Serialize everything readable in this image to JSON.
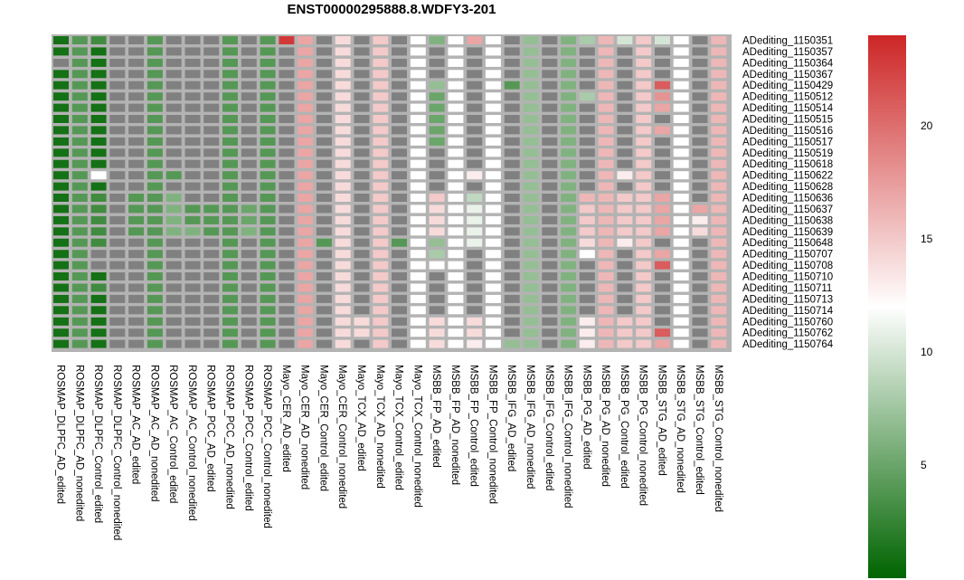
{
  "chart_data": {
    "type": "heatmap",
    "title": "ENST00000295888.8.WDFY3-201",
    "columns": [
      "ROSMAP_DLPFC_AD_edited",
      "ROSMAP_DLPFC_AD_nonedited",
      "ROSMAP_DLPFC_Control_edited",
      "ROSMAP_DLPFC_Control_nonedited",
      "ROSMAP_AC_AD_edited",
      "ROSMAP_AC_AD_nonedited",
      "ROSMAP_AC_Control_edited",
      "ROSMAP_AC_Control_nonedited",
      "ROSMAP_PCC_AD_edited",
      "ROSMAP_PCC_AD_nonedited",
      "ROSMAP_PCC_Control_edited",
      "ROSMAP_PCC_Control_nonedited",
      "Mayo_CER_AD_edited",
      "Mayo_CER_AD_nonedited",
      "Mayo_CER_Control_edited",
      "Mayo_CER_Control_nonedited",
      "Mayo_TCX_AD_edited",
      "Mayo_TCX_AD_nonedited",
      "Mayo_TCX_Control_edited",
      "Mayo_TCX_Control_nonedited",
      "MSBB_FP_AD_edited",
      "MSBB_FP_AD_nonedited",
      "MSBB_FP_Control_edited",
      "MSBB_FP_Control_nonedited",
      "MSBB_IFG_AD_edited",
      "MSBB_IFG_AD_nonedited",
      "MSBB_IFG_Control_edited",
      "MSBB_IFG_Control_nonedited",
      "MSBB_PG_AD_edited",
      "MSBB_PG_AD_nonedited",
      "MSBB_PG_Control_edited",
      "MSBB_PG_Control_nonedited",
      "MSBB_STG_AD_edited",
      "MSBB_STG_AD_nonedited",
      "MSBB_STG_Control_edited",
      "MSBB_STG_Control_nonedited"
    ],
    "rows": [
      "ADediting_1150351",
      "ADediting_1150357",
      "ADediting_1150364",
      "ADediting_1150367",
      "ADediting_1150429",
      "ADediting_1150512",
      "ADediting_1150514",
      "ADediting_1150515",
      "ADediting_1150516",
      "ADediting_1150517",
      "ADediting_1150519",
      "ADediting_1150618",
      "ADediting_1150622",
      "ADediting_1150628",
      "ADediting_1150636",
      "ADediting_1150637",
      "ADediting_1150638",
      "ADediting_1150639",
      "ADediting_1150648",
      "ADediting_1150707",
      "ADediting_1150708",
      "ADediting_1150710",
      "ADediting_1150711",
      "ADediting_1150713",
      "ADediting_1150714",
      "ADediting_1150760",
      "ADediting_1150762",
      "ADediting_1150764"
    ],
    "values": [
      [
        1,
        4,
        3,
        null,
        null,
        4,
        null,
        null,
        null,
        4,
        null,
        4,
        23,
        17,
        null,
        14,
        null,
        15,
        null,
        12,
        6,
        12,
        17,
        12,
        null,
        7,
        null,
        6,
        8,
        16,
        10,
        15,
        10,
        12,
        null,
        16
      ],
      [
        1,
        4,
        1,
        null,
        null,
        4,
        null,
        null,
        null,
        4,
        null,
        4,
        null,
        17,
        null,
        14,
        null,
        15,
        null,
        12,
        null,
        12,
        null,
        12,
        null,
        7,
        null,
        6,
        null,
        16,
        null,
        15,
        null,
        12,
        null,
        16
      ],
      [
        null,
        4,
        1,
        null,
        null,
        4,
        null,
        null,
        null,
        4,
        null,
        4,
        null,
        17,
        null,
        14,
        null,
        15,
        null,
        12,
        null,
        12,
        null,
        12,
        null,
        7,
        null,
        6,
        null,
        16,
        null,
        15,
        null,
        12,
        null,
        16
      ],
      [
        1,
        4,
        1,
        null,
        null,
        4,
        null,
        null,
        null,
        4,
        null,
        4,
        null,
        17,
        null,
        14,
        null,
        15,
        null,
        12,
        null,
        12,
        null,
        12,
        null,
        7,
        null,
        6,
        null,
        16,
        null,
        15,
        null,
        12,
        null,
        16
      ],
      [
        1,
        4,
        1,
        null,
        null,
        4,
        null,
        null,
        null,
        4,
        null,
        4,
        null,
        17,
        null,
        14,
        null,
        15,
        null,
        12,
        7,
        12,
        null,
        12,
        4,
        7,
        null,
        6,
        null,
        16,
        null,
        15,
        21,
        12,
        null,
        16
      ],
      [
        1,
        4,
        1,
        null,
        null,
        4,
        null,
        null,
        null,
        4,
        null,
        4,
        null,
        17,
        null,
        14,
        null,
        15,
        null,
        12,
        5,
        12,
        null,
        12,
        null,
        7,
        null,
        6,
        8,
        16,
        null,
        15,
        18,
        12,
        null,
        16
      ],
      [
        1,
        4,
        1,
        null,
        null,
        4,
        null,
        null,
        null,
        4,
        null,
        4,
        null,
        17,
        null,
        14,
        null,
        15,
        null,
        12,
        5,
        12,
        null,
        12,
        null,
        7,
        null,
        6,
        null,
        16,
        null,
        15,
        17,
        12,
        null,
        16
      ],
      [
        1,
        4,
        1,
        null,
        null,
        4,
        null,
        null,
        null,
        4,
        null,
        4,
        null,
        17,
        null,
        14,
        null,
        15,
        null,
        12,
        5,
        12,
        null,
        12,
        null,
        7,
        null,
        6,
        null,
        16,
        null,
        15,
        null,
        12,
        null,
        16
      ],
      [
        1,
        4,
        1,
        null,
        null,
        4,
        null,
        null,
        null,
        4,
        null,
        4,
        null,
        17,
        null,
        14,
        null,
        15,
        null,
        12,
        5,
        12,
        null,
        12,
        null,
        7,
        null,
        6,
        null,
        16,
        null,
        15,
        17,
        12,
        null,
        16
      ],
      [
        1,
        4,
        1,
        null,
        null,
        4,
        null,
        null,
        null,
        4,
        null,
        4,
        null,
        17,
        null,
        14,
        null,
        15,
        null,
        12,
        5,
        12,
        null,
        12,
        null,
        7,
        null,
        6,
        null,
        16,
        null,
        15,
        null,
        12,
        null,
        16
      ],
      [
        1,
        4,
        1,
        null,
        null,
        4,
        null,
        null,
        null,
        4,
        null,
        4,
        null,
        17,
        null,
        14,
        null,
        15,
        null,
        12,
        null,
        12,
        null,
        12,
        null,
        7,
        null,
        6,
        null,
        16,
        null,
        15,
        null,
        12,
        null,
        16
      ],
      [
        1,
        4,
        1,
        null,
        null,
        4,
        null,
        null,
        null,
        4,
        null,
        4,
        null,
        17,
        null,
        14,
        null,
        15,
        null,
        12,
        null,
        12,
        null,
        12,
        null,
        7,
        null,
        6,
        null,
        16,
        null,
        15,
        null,
        12,
        null,
        16
      ],
      [
        1,
        4,
        12,
        null,
        null,
        4,
        4,
        null,
        null,
        4,
        null,
        4,
        null,
        17,
        null,
        14,
        null,
        15,
        null,
        12,
        null,
        12,
        13,
        12,
        null,
        7,
        null,
        6,
        null,
        16,
        13,
        15,
        null,
        12,
        null,
        16
      ],
      [
        1,
        4,
        1,
        null,
        null,
        4,
        null,
        null,
        null,
        4,
        null,
        4,
        null,
        17,
        null,
        14,
        null,
        15,
        null,
        12,
        null,
        12,
        null,
        12,
        null,
        7,
        null,
        6,
        null,
        16,
        null,
        15,
        null,
        12,
        null,
        16
      ],
      [
        1,
        4,
        3,
        null,
        4,
        4,
        6,
        null,
        null,
        4,
        null,
        4,
        null,
        17,
        null,
        14,
        null,
        15,
        null,
        12,
        15,
        12,
        9,
        12,
        null,
        7,
        null,
        6,
        16,
        16,
        15,
        15,
        17,
        12,
        null,
        16
      ],
      [
        1,
        4,
        3,
        null,
        4,
        4,
        6,
        4,
        4,
        4,
        5,
        4,
        null,
        17,
        null,
        14,
        null,
        15,
        null,
        12,
        14,
        12,
        11,
        12,
        null,
        7,
        null,
        6,
        15,
        16,
        15,
        15,
        17,
        12,
        17,
        16
      ],
      [
        1,
        4,
        3,
        null,
        4,
        4,
        6,
        4,
        4,
        4,
        5,
        4,
        null,
        17,
        null,
        14,
        null,
        15,
        null,
        12,
        14,
        12,
        11,
        12,
        null,
        7,
        null,
        6,
        15,
        16,
        15,
        15,
        17,
        12,
        13,
        16
      ],
      [
        1,
        4,
        3,
        null,
        4,
        4,
        6,
        6,
        4,
        4,
        6,
        4,
        null,
        17,
        null,
        14,
        null,
        15,
        null,
        12,
        14,
        12,
        11,
        12,
        null,
        7,
        null,
        6,
        15,
        16,
        15,
        15,
        17,
        12,
        14,
        16
      ],
      [
        1,
        4,
        3,
        null,
        null,
        4,
        null,
        null,
        null,
        4,
        null,
        4,
        null,
        17,
        4,
        14,
        null,
        15,
        4,
        12,
        7,
        12,
        11,
        12,
        null,
        7,
        null,
        6,
        14,
        16,
        13,
        15,
        null,
        12,
        null,
        16
      ],
      [
        1,
        4,
        null,
        null,
        null,
        4,
        null,
        null,
        null,
        4,
        null,
        4,
        null,
        17,
        null,
        14,
        null,
        15,
        null,
        12,
        8,
        12,
        null,
        12,
        null,
        7,
        null,
        6,
        12,
        16,
        null,
        15,
        17,
        12,
        null,
        16
      ],
      [
        1,
        4,
        null,
        null,
        null,
        4,
        null,
        null,
        null,
        4,
        null,
        4,
        null,
        17,
        null,
        14,
        null,
        15,
        null,
        12,
        12,
        12,
        null,
        12,
        null,
        7,
        null,
        6,
        null,
        16,
        null,
        15,
        21,
        12,
        null,
        16
      ],
      [
        1,
        4,
        1,
        null,
        null,
        4,
        null,
        null,
        null,
        4,
        null,
        4,
        null,
        17,
        null,
        14,
        null,
        15,
        null,
        12,
        null,
        12,
        null,
        12,
        null,
        7,
        null,
        6,
        null,
        16,
        null,
        15,
        null,
        12,
        null,
        16
      ],
      [
        1,
        4,
        3,
        null,
        null,
        4,
        null,
        null,
        null,
        4,
        null,
        4,
        null,
        17,
        null,
        14,
        null,
        15,
        null,
        12,
        null,
        12,
        null,
        12,
        null,
        7,
        null,
        6,
        null,
        16,
        null,
        15,
        null,
        12,
        null,
        16
      ],
      [
        1,
        4,
        1,
        null,
        null,
        4,
        null,
        null,
        null,
        4,
        null,
        4,
        null,
        17,
        null,
        14,
        null,
        15,
        null,
        12,
        null,
        12,
        null,
        12,
        null,
        7,
        null,
        6,
        null,
        16,
        null,
        15,
        null,
        12,
        null,
        16
      ],
      [
        1,
        4,
        1,
        null,
        null,
        4,
        null,
        null,
        null,
        4,
        null,
        4,
        null,
        17,
        null,
        14,
        null,
        15,
        null,
        12,
        null,
        12,
        null,
        12,
        null,
        7,
        null,
        6,
        null,
        16,
        null,
        15,
        null,
        12,
        null,
        16
      ],
      [
        1,
        4,
        1,
        null,
        null,
        4,
        null,
        null,
        null,
        4,
        null,
        4,
        null,
        17,
        null,
        14,
        14,
        15,
        null,
        12,
        14,
        12,
        14,
        12,
        null,
        7,
        null,
        6,
        13,
        16,
        15,
        15,
        null,
        12,
        null,
        16
      ],
      [
        1,
        4,
        1,
        null,
        null,
        4,
        null,
        null,
        null,
        4,
        null,
        4,
        null,
        17,
        null,
        14,
        14,
        15,
        null,
        12,
        14,
        12,
        14,
        12,
        null,
        7,
        null,
        6,
        13,
        16,
        15,
        15,
        21,
        12,
        null,
        16
      ],
      [
        1,
        4,
        1,
        null,
        null,
        4,
        null,
        null,
        null,
        4,
        null,
        4,
        null,
        17,
        null,
        14,
        null,
        15,
        null,
        12,
        14,
        12,
        13,
        12,
        7,
        7,
        null,
        6,
        13,
        16,
        15,
        15,
        17,
        12,
        null,
        16
      ]
    ],
    "missing_color": "#808080",
    "colorscale": {
      "min": 0,
      "mid": 12,
      "max": 24,
      "colors": [
        "#006400",
        "#ffffff",
        "#cd2626"
      ],
      "ticks": [
        5,
        10,
        15,
        20
      ]
    },
    "grid": true
  }
}
